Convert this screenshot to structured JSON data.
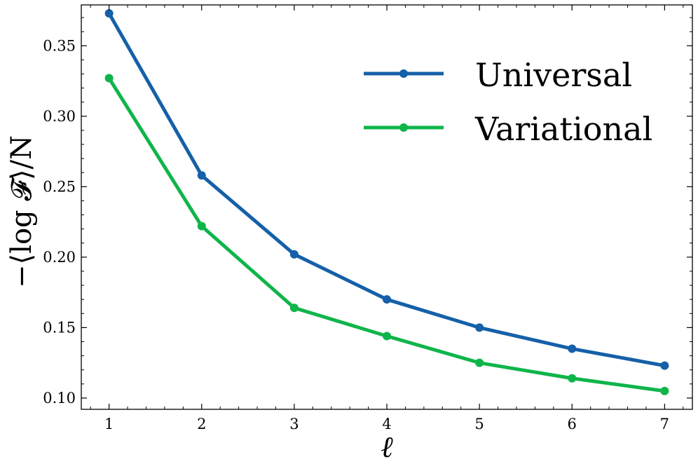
{
  "chart_data": {
    "type": "line",
    "x": [
      1,
      2,
      3,
      4,
      5,
      6,
      7
    ],
    "series": [
      {
        "name": "Universal",
        "color": "#1560a8",
        "values": [
          0.373,
          0.258,
          0.202,
          0.17,
          0.15,
          0.135,
          0.123
        ]
      },
      {
        "name": "Variational",
        "color": "#0fb54a",
        "values": [
          0.327,
          0.222,
          0.164,
          0.144,
          0.125,
          0.114,
          0.105
        ]
      }
    ],
    "xlabel": "ℓ",
    "ylabel": "−⟨log 𝓕⟩/N",
    "xlim": [
      0.7,
      7.3
    ],
    "ylim": [
      0.092,
      0.379
    ],
    "xticks": [
      1,
      2,
      3,
      4,
      5,
      6,
      7
    ],
    "xtick_labels": [
      "1",
      "2",
      "3",
      "4",
      "5",
      "6",
      "7"
    ],
    "yticks": [
      0.1,
      0.15,
      0.2,
      0.25,
      0.3,
      0.35
    ],
    "ytick_labels": [
      "0.10",
      "0.15",
      "0.20",
      "0.25",
      "0.30",
      "0.35"
    ],
    "grid": false,
    "legend_position": "top-right"
  }
}
